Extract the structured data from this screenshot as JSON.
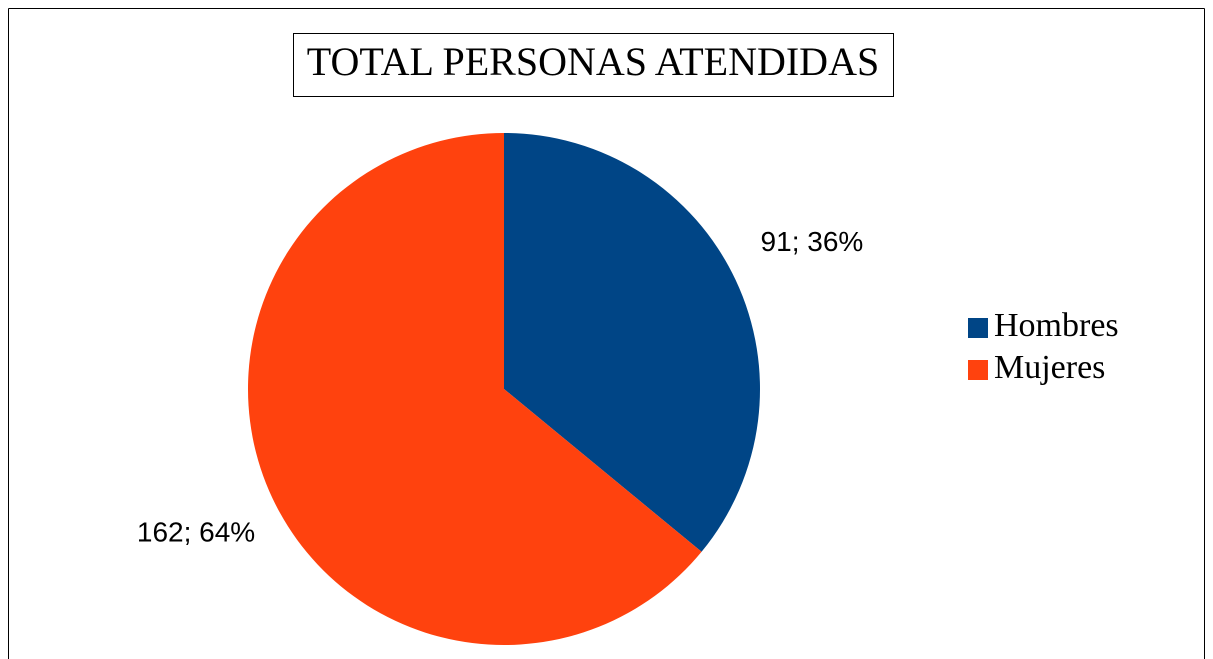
{
  "chart_data": {
    "type": "pie",
    "title": "TOTAL PERSONAS ATENDIDAS",
    "categories": [
      "Hombres",
      "Mujeres"
    ],
    "values": [
      91,
      162
    ],
    "value_labels": [
      "91; 36%",
      "162; 64%"
    ],
    "colors": [
      "#004586",
      "#ff420e"
    ],
    "legend": "right"
  }
}
